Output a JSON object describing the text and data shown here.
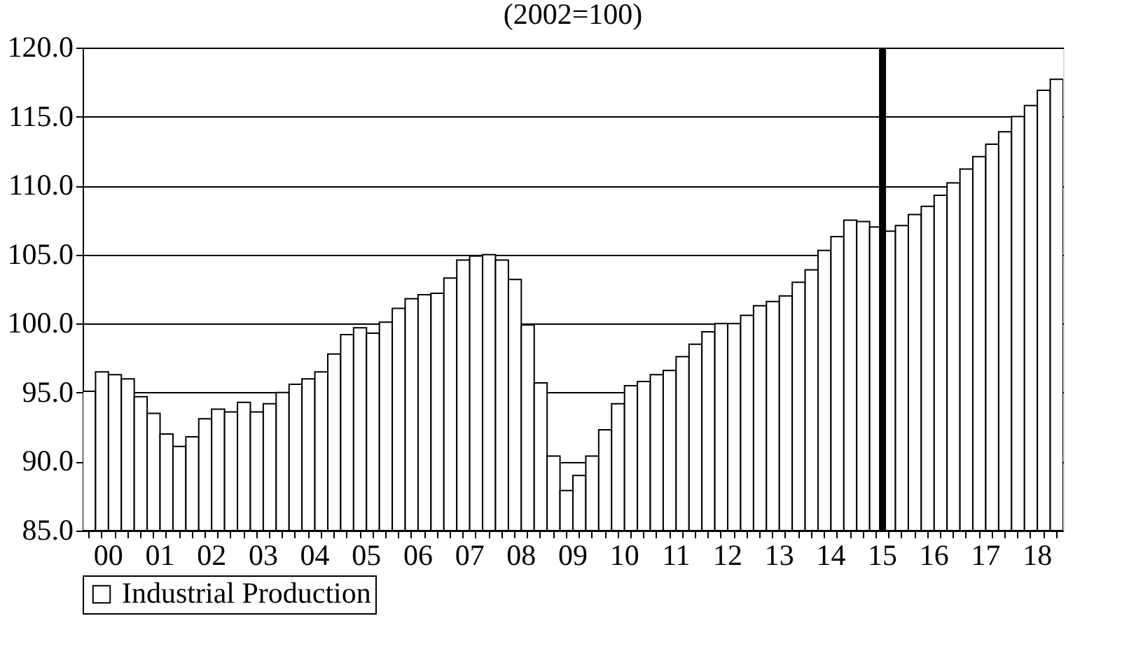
{
  "chart_data": {
    "type": "bar",
    "title": "(2002=100)",
    "categories": [
      null,
      "00",
      null,
      null,
      null,
      "01",
      null,
      null,
      null,
      "02",
      null,
      null,
      null,
      "03",
      null,
      null,
      null,
      "04",
      null,
      null,
      null,
      "05",
      null,
      null,
      null,
      "06",
      null,
      null,
      null,
      "07",
      null,
      null,
      null,
      "08",
      null,
      null,
      null,
      "09",
      null,
      null,
      null,
      "10",
      null,
      null,
      null,
      "11",
      null,
      null,
      null,
      "12",
      null,
      null,
      null,
      "13",
      null,
      null,
      null,
      "14",
      null,
      null,
      null,
      "15",
      null,
      null,
      null,
      "16",
      null,
      null,
      null,
      "17",
      null,
      null,
      null,
      "18",
      null,
      null
    ],
    "series": [
      {
        "name": "Industrial Production",
        "color": "#ffffff",
        "values": [
          95.1,
          96.5,
          96.3,
          96.0,
          94.7,
          93.5,
          92.0,
          91.1,
          91.8,
          93.1,
          93.8,
          93.6,
          94.3,
          93.6,
          94.2,
          95.0,
          95.6,
          96.0,
          96.5,
          97.8,
          99.2,
          99.7,
          99.3,
          100.1,
          101.1,
          101.8,
          102.1,
          102.2,
          103.3,
          104.6,
          104.9,
          105.0,
          104.6,
          103.2,
          99.9,
          95.7,
          90.4,
          87.9,
          89.0,
          90.4,
          92.3,
          94.2,
          95.5,
          95.8,
          96.3,
          96.6,
          97.6,
          98.5,
          99.4,
          100.0,
          100.0,
          100.6,
          101.3,
          101.6,
          102.0,
          103.0,
          103.9,
          105.3,
          106.3,
          107.5,
          107.4,
          107.0,
          106.7,
          107.1,
          107.9,
          108.5,
          109.3,
          110.2,
          111.2,
          112.1,
          113.0,
          113.9,
          115.0,
          115.8,
          116.9,
          117.7
        ]
      }
    ],
    "ylim": [
      85,
      120
    ],
    "yticks": [
      {
        "value": 85,
        "label": "85.0"
      },
      {
        "value": 90,
        "label": "90.0"
      },
      {
        "value": 95,
        "label": "95.0"
      },
      {
        "value": 100,
        "label": "100.0"
      },
      {
        "value": 105,
        "label": "105.0"
      },
      {
        "value": 110,
        "label": "110.0"
      },
      {
        "value": 115,
        "label": "115.0"
      },
      {
        "value": 120,
        "label": "120.0"
      }
    ],
    "grid": "y",
    "legend": "bottom",
    "ref_lines": [
      {
        "axis": "x",
        "value": "15",
        "color": "#000000"
      }
    ]
  }
}
